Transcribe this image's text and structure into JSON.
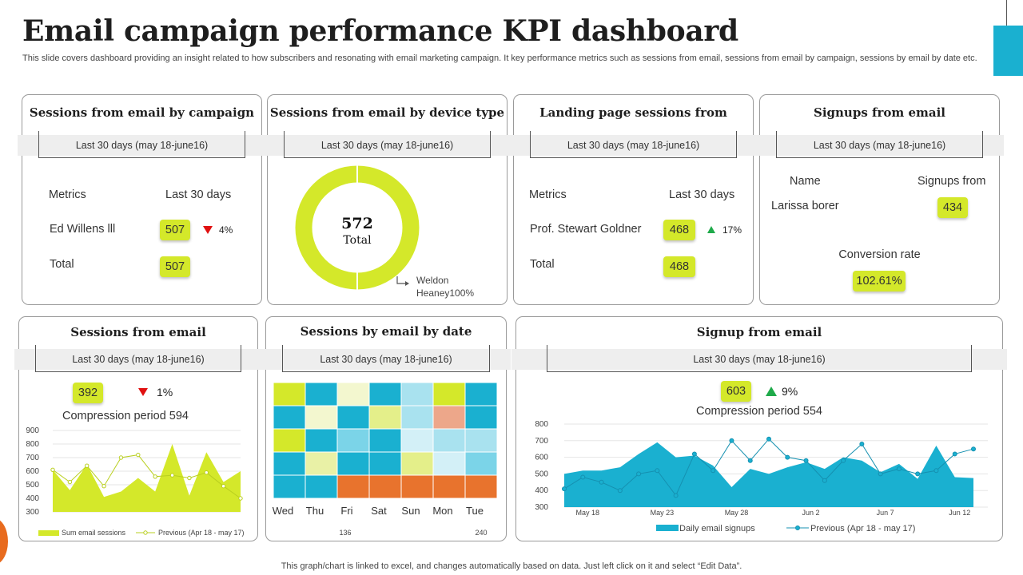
{
  "header": {
    "title": "Email campaign performance KPI dashboard",
    "subtitle": "This slide covers dashboard providing an insight related to how subscribers and resonating with email marketing campaign. It key performance metrics such as sessions from email, sessions from email by campaign, sessions by email by date etc."
  },
  "colors": {
    "accent_lime": "#d4e82a",
    "accent_blue": "#1ab0d0",
    "down": "#e01010",
    "up": "#1faa4a"
  },
  "range_label": "Last 30 days (may 18-june16)",
  "campaign": {
    "title": "Sessions from email by campaign",
    "col_metrics": "Metrics",
    "col_last30": "Last 30 days",
    "row1_name": "Ed Willens lll",
    "row1_value": "507",
    "row1_change": "4%",
    "total_label": "Total",
    "total_value": "507"
  },
  "device": {
    "title": "Sessions from email by device type",
    "total_value": "572",
    "total_label": "Total",
    "legend_line1": "Weldon",
    "legend_line2": "Heaney100%"
  },
  "landing": {
    "title": "Landing page sessions from",
    "col_metrics": "Metrics",
    "col_last30": "Last 30 days",
    "row1_name": "Prof. Stewart Goldner",
    "row1_value": "468",
    "row1_change": "17%",
    "total_label": "Total",
    "total_value": "468"
  },
  "signups": {
    "title": "Signups from email",
    "col_name": "Name",
    "col_signups": "Signups from",
    "row1_name": "Larissa borer",
    "row1_value": "434",
    "conversion_label": "Conversion rate",
    "conversion_value": "102.61%"
  },
  "sessions_email": {
    "title": "Sessions from email",
    "value": "392",
    "change": "1%",
    "compression": "Compression period 594"
  },
  "by_date": {
    "title": "Sessions by email by date"
  },
  "signup_email": {
    "title": "Signup from email",
    "value": "603",
    "change": "9%",
    "compression": "Compression period 554"
  },
  "footnote": "This graph/chart is linked to excel,  and changes automatically based on data. Just left click on it and select “Edit Data”.",
  "chart_data": [
    {
      "type": "pie",
      "title": "Sessions from email by device type",
      "categories": [
        "Weldon Heaney"
      ],
      "values": [
        100
      ],
      "center_label": "572 Total"
    },
    {
      "type": "area",
      "title": "Sessions from email",
      "ylim": [
        300,
        900
      ],
      "yticks": [
        300,
        400,
        500,
        600,
        700,
        800,
        900
      ],
      "series": [
        {
          "name": "Sum email sessions",
          "values": [
            610,
            460,
            650,
            410,
            450,
            550,
            450,
            800,
            420,
            740,
            520,
            600
          ]
        },
        {
          "name": "Previous (Apr 18 - may 17)",
          "values": [
            610,
            520,
            640,
            490,
            700,
            720,
            560,
            570,
            550,
            590,
            490,
            400
          ]
        }
      ]
    },
    {
      "type": "heatmap",
      "title": "Sessions by email by date",
      "columns": [
        "Wed",
        "Thu",
        "Fri",
        "Sat",
        "Sun",
        "Mon",
        "Tue"
      ],
      "scale_min": 136,
      "scale_max": 240,
      "rows": [
        [
          "#d4e82a",
          "#1ab0d0",
          "#f3f7cf",
          "#1ab0d0",
          "#a9e2ef",
          "#d4e82a",
          "#1ab0d0"
        ],
        [
          "#1ab0d0",
          "#f3f7cf",
          "#1ab0d0",
          "#e4ef8a",
          "#a9e2ef",
          "#eda78a",
          "#1ab0d0"
        ],
        [
          "#d4e82a",
          "#1ab0d0",
          "#7bd4e8",
          "#1ab0d0",
          "#d3f0f7",
          "#a9e2ef",
          "#a9e2ef"
        ],
        [
          "#1ab0d0",
          "#e9f1a6",
          "#1ab0d0",
          "#1ab0d0",
          "#e4ef8a",
          "#d3f0f7",
          "#7bd4e8"
        ],
        [
          "#1ab0d0",
          "#1ab0d0",
          "#e8732d",
          "#e8732d",
          "#e8732d",
          "#e8732d",
          "#e8732d"
        ]
      ]
    },
    {
      "type": "area",
      "title": "Signup from email",
      "ylim": [
        300,
        800
      ],
      "yticks": [
        300,
        400,
        500,
        600,
        700,
        800
      ],
      "xticks": [
        "May 18",
        "May 23",
        "May 28",
        "Jun 2",
        "Jun 7",
        "Jun 12"
      ],
      "series": [
        {
          "name": "Daily email signups",
          "values": [
            500,
            520,
            520,
            540,
            620,
            690,
            600,
            610,
            550,
            420,
            530,
            500,
            540,
            570,
            530,
            600,
            580,
            510,
            560,
            470,
            670,
            480,
            475
          ]
        },
        {
          "name": "Previous (Apr 18 - may 17)",
          "values": [
            410,
            480,
            450,
            400,
            500,
            520,
            370,
            620,
            520,
            700,
            580,
            710,
            600,
            580,
            460,
            580,
            680,
            500,
            530,
            500,
            520,
            620,
            650
          ]
        }
      ]
    }
  ]
}
